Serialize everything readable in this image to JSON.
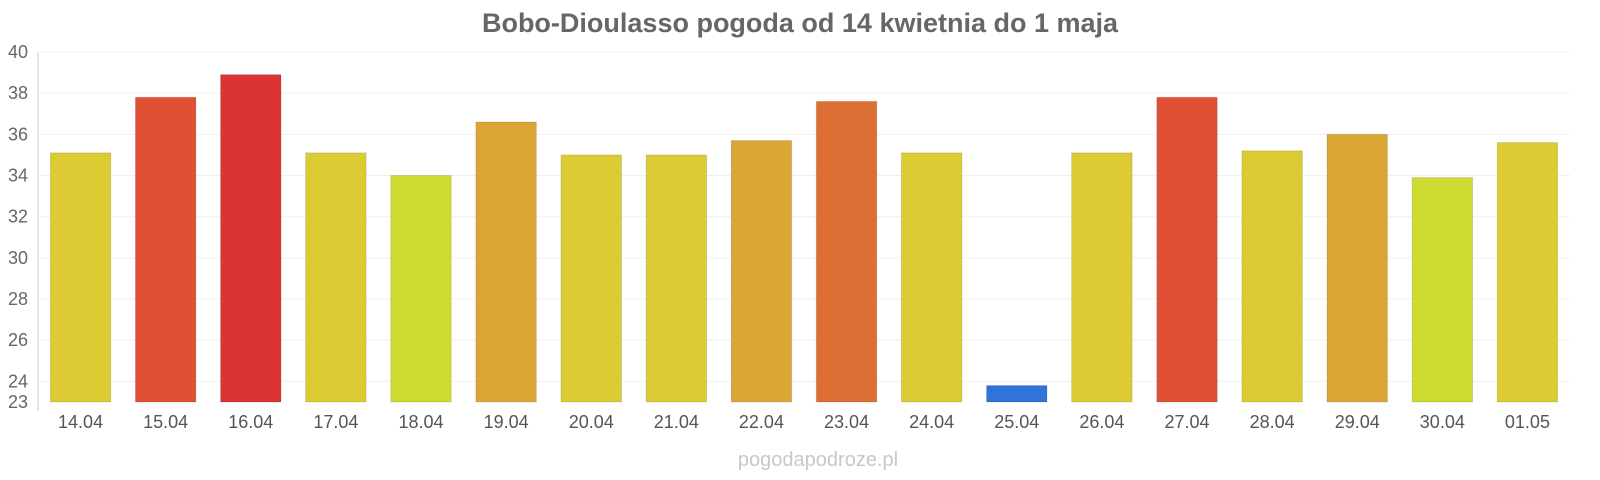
{
  "chart_data": {
    "type": "bar",
    "title": "Bobo-Dioulasso pogoda od 14 kwietnia do 1 maja",
    "xlabel": "",
    "ylabel": "",
    "ylim": [
      23,
      40
    ],
    "yticks": [
      23,
      24,
      26,
      28,
      30,
      32,
      34,
      36,
      38,
      40
    ],
    "grid": true,
    "legend": "none",
    "categories": [
      "14.04",
      "15.04",
      "16.04",
      "17.04",
      "18.04",
      "19.04",
      "20.04",
      "21.04",
      "22.04",
      "23.04",
      "24.04",
      "25.04",
      "26.04",
      "27.04",
      "28.04",
      "29.04",
      "30.04",
      "01.05"
    ],
    "values": [
      35.1,
      37.8,
      38.9,
      35.1,
      34.0,
      36.6,
      35.0,
      35.0,
      35.7,
      37.6,
      35.1,
      23.8,
      35.1,
      37.8,
      35.2,
      36.0,
      33.9,
      35.6
    ],
    "colors": [
      "#dccb33",
      "#df5034",
      "#db3434",
      "#dccb33",
      "#d0db31",
      "#dba634",
      "#dccb33",
      "#dccb33",
      "#dba634",
      "#dd6e34",
      "#dccb33",
      "#3172db",
      "#dccb33",
      "#df5034",
      "#dccb33",
      "#dba634",
      "#d0db31",
      "#dccb33"
    ]
  },
  "watermark": "pogodapodroze.pl"
}
